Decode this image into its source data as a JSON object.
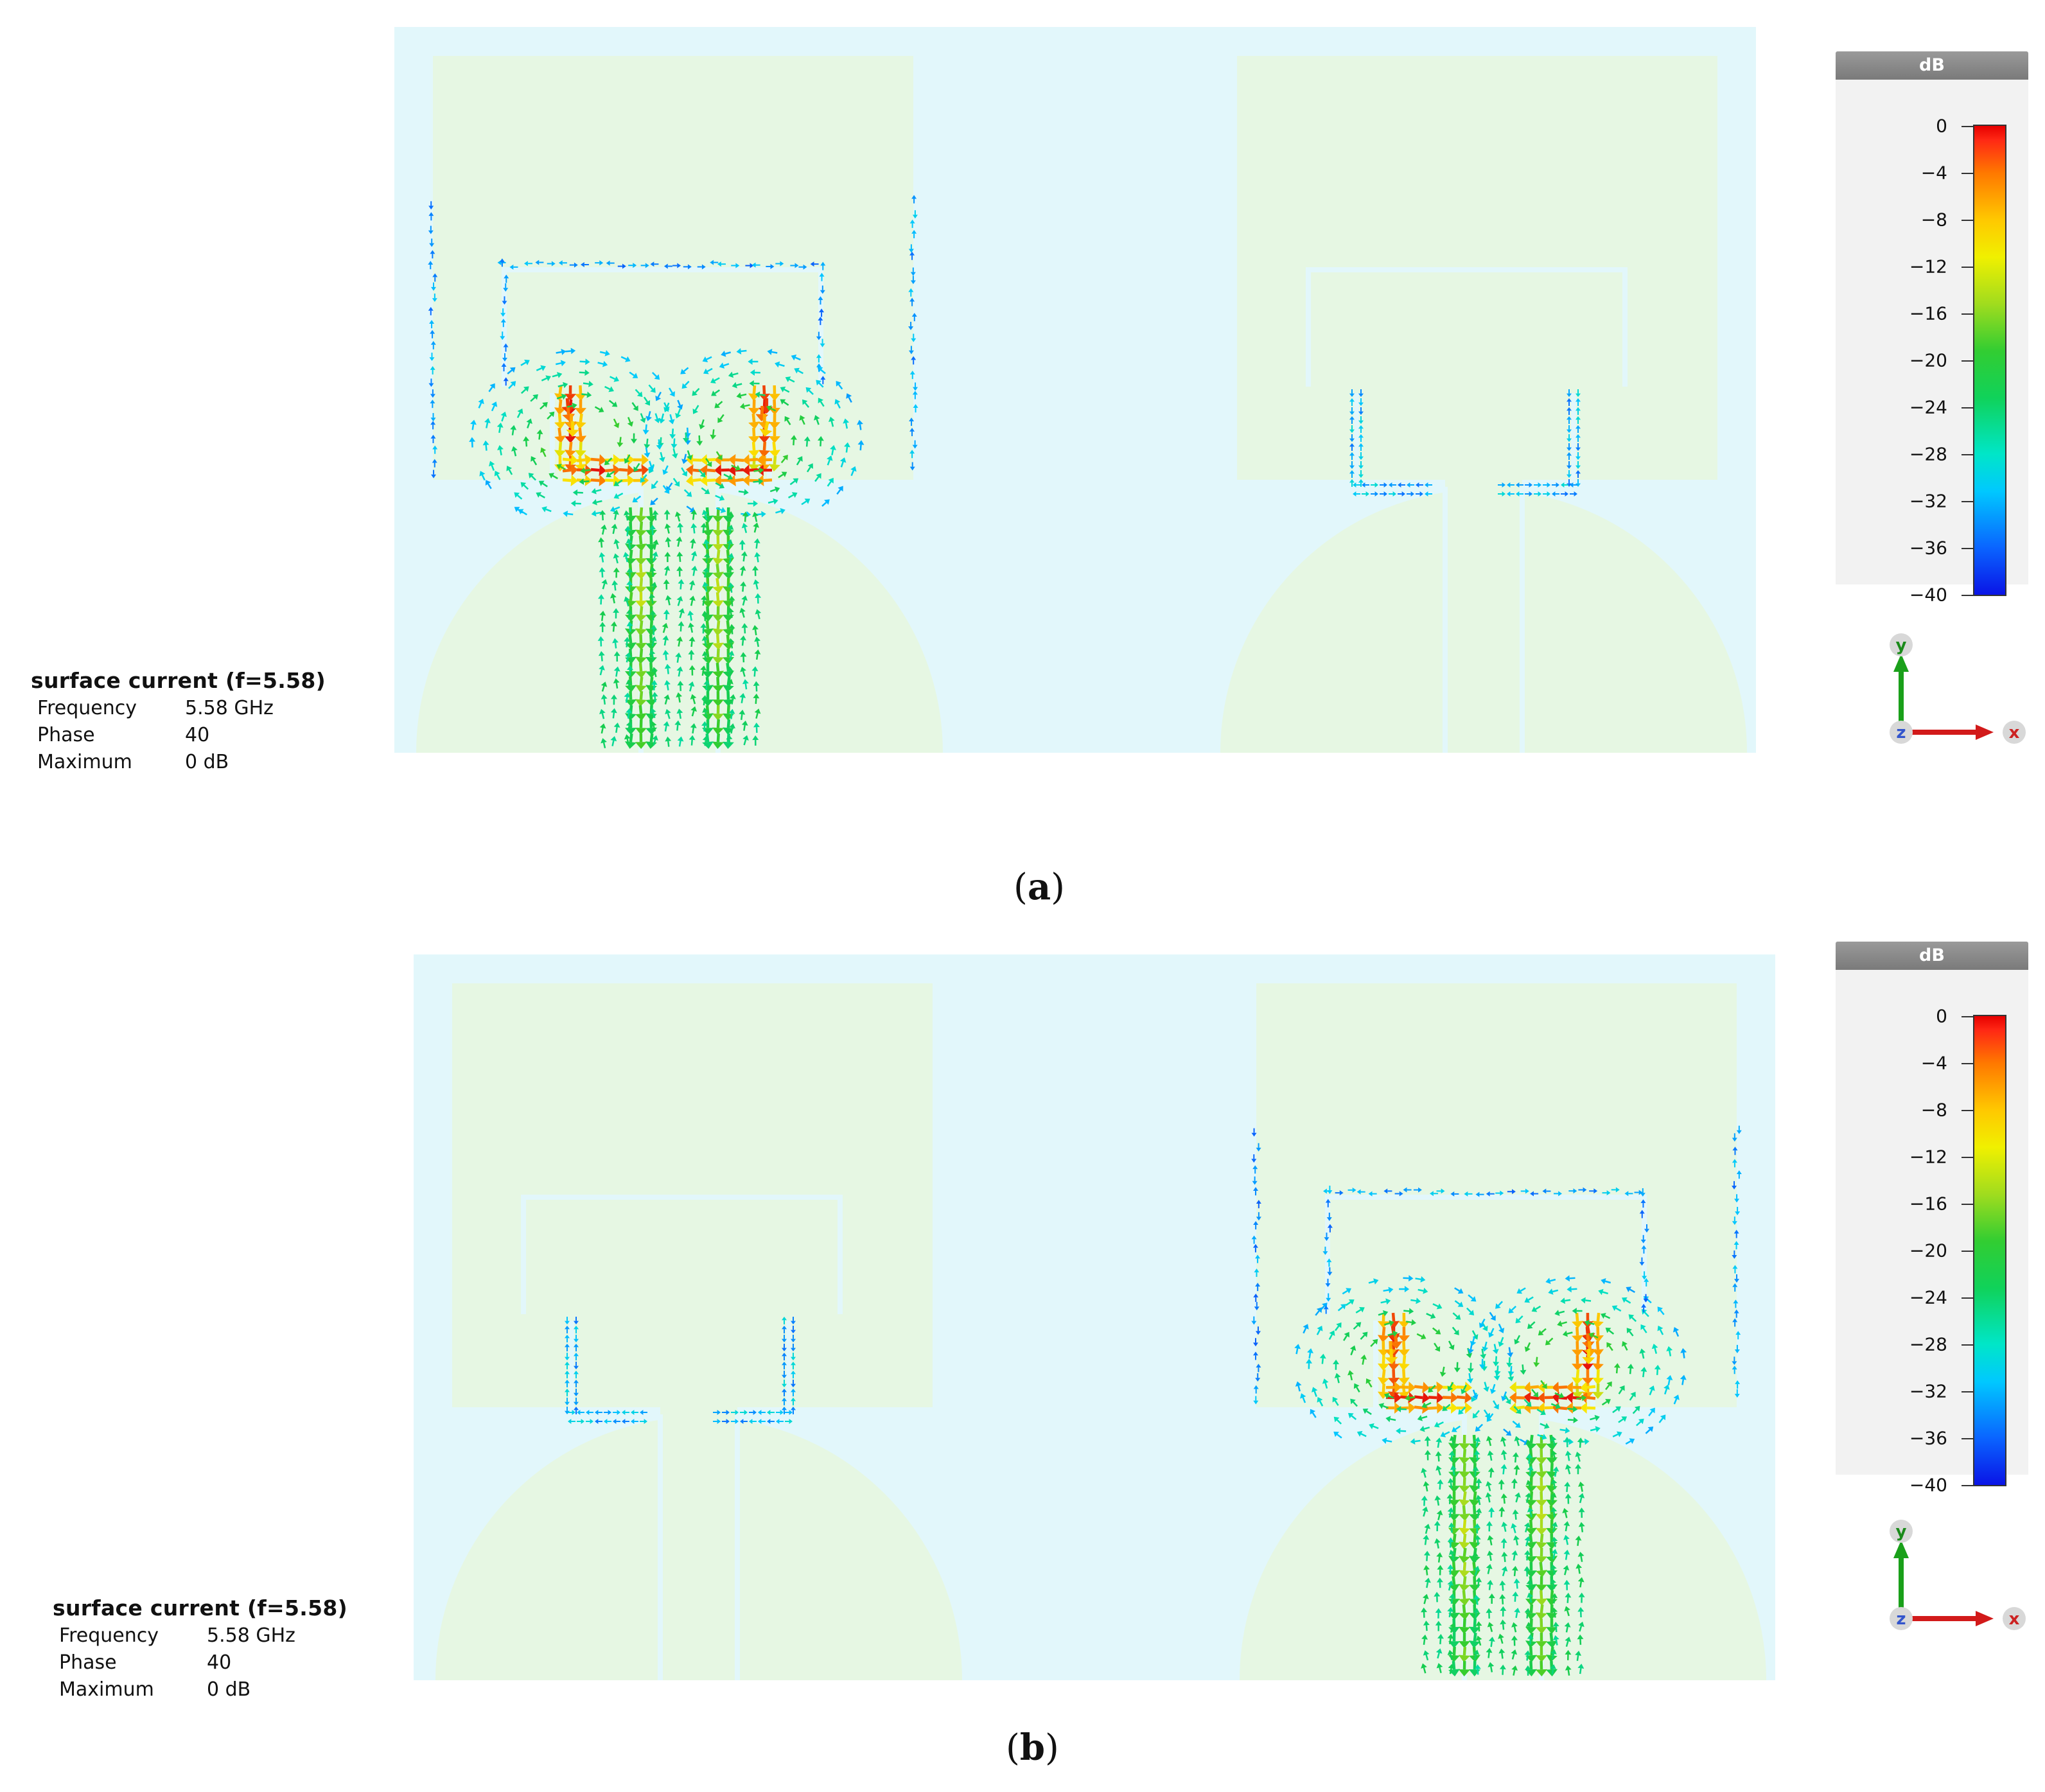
{
  "panels": [
    {
      "caption_open": "(",
      "caption_letter": "a",
      "caption_close": ")",
      "excited_port": "left",
      "info": {
        "title": "surface current (f=5.58)",
        "rows": [
          {
            "key": "Frequency",
            "value": "5.58 GHz"
          },
          {
            "key": "Phase",
            "value": "40"
          },
          {
            "key": "Maximum",
            "value": "0 dB"
          }
        ]
      },
      "colorbar": {
        "unit": "dB",
        "ticks": [
          "0",
          "-4",
          "-8",
          "-12",
          "-16",
          "-20",
          "-24",
          "-28",
          "-32",
          "-36",
          "-40"
        ]
      },
      "axes": {
        "y": "y",
        "z": "z",
        "x": "x"
      }
    },
    {
      "caption_open": "(",
      "caption_letter": "b",
      "caption_close": ")",
      "excited_port": "right",
      "info": {
        "title": "surface current (f=5.58)",
        "rows": [
          {
            "key": "Frequency",
            "value": "5.58 GHz"
          },
          {
            "key": "Phase",
            "value": "40"
          },
          {
            "key": "Maximum",
            "value": "0 dB"
          }
        ]
      },
      "colorbar": {
        "unit": "dB",
        "ticks": [
          "0",
          "-4",
          "-8",
          "-12",
          "-16",
          "-20",
          "-24",
          "-28",
          "-32",
          "-36",
          "-40"
        ]
      },
      "axes": {
        "y": "y",
        "z": "z",
        "x": "x"
      }
    }
  ],
  "colors": {
    "substrate": "#e2f7fb",
    "metal": "#e6f7e3",
    "slot": "#e2f7fb",
    "colorbar_header": "#8a8a8a"
  }
}
